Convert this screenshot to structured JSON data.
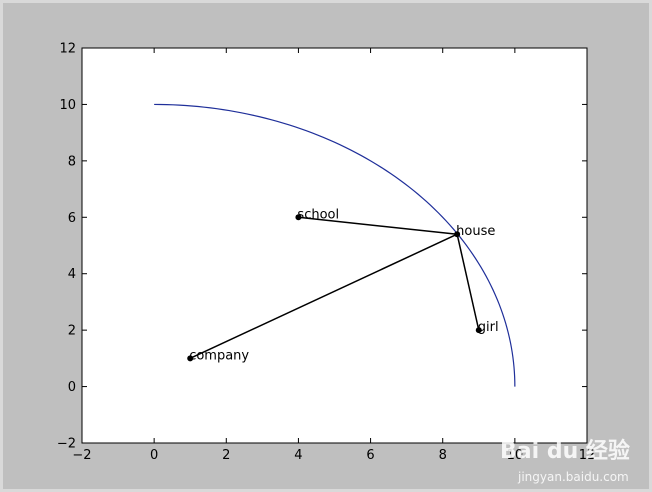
{
  "chart_data": {
    "type": "scatter",
    "title": "",
    "xlabel": "",
    "ylabel": "",
    "xlim": [
      -2,
      12
    ],
    "ylim": [
      -2,
      12
    ],
    "xticks": [
      -2,
      0,
      2,
      4,
      6,
      8,
      10,
      12
    ],
    "yticks": [
      -2,
      0,
      2,
      4,
      6,
      8,
      10,
      12
    ],
    "xtick_labels": [
      "−2",
      "0",
      "2",
      "4",
      "6",
      "8",
      "10",
      "12"
    ],
    "ytick_labels": [
      "−2",
      "0",
      "2",
      "4",
      "6",
      "8",
      "10",
      "12"
    ],
    "grid": false,
    "curve": {
      "description": "quarter circle of radius 10 centered at origin",
      "radius": 10,
      "color": "#1f2f9a"
    },
    "points": [
      {
        "label": "school",
        "x": 4,
        "y": 6
      },
      {
        "label": "house",
        "x": 8.4,
        "y": 5.4
      },
      {
        "label": "girl",
        "x": 9,
        "y": 2
      },
      {
        "label": "company",
        "x": 1,
        "y": 1
      }
    ],
    "edges": [
      {
        "from": "house",
        "to": "school"
      },
      {
        "from": "house",
        "to": "girl"
      },
      {
        "from": "house",
        "to": "company"
      }
    ]
  },
  "watermark": {
    "brand": "Bai du 经验",
    "url": "jingyan.baidu.com"
  },
  "colors": {
    "figure_background": "#bfbfbf",
    "axes_background": "#ffffff",
    "curve": "#1f2f9a",
    "lines": "#000000",
    "points": "#000000"
  }
}
